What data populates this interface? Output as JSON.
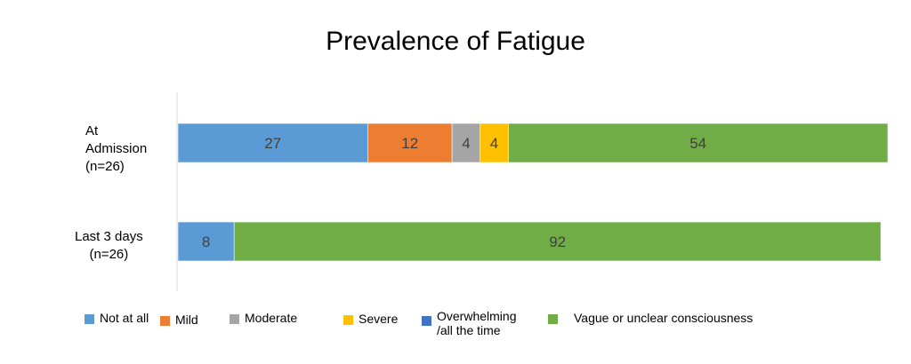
{
  "chart_data": {
    "type": "bar",
    "orientation": "horizontal",
    "stacked": true,
    "title": "Prevalence of Fatigue",
    "categories": [
      "At\nAdmission\n(n=26)",
      "Last 3 days\n(n=26)"
    ],
    "series": [
      {
        "name": "Not at all",
        "color": "#5B9BD5",
        "values": [
          27,
          8
        ]
      },
      {
        "name": "Mild",
        "color": "#ED7D31",
        "values": [
          12,
          0
        ]
      },
      {
        "name": "Moderate",
        "color": "#A5A5A5",
        "values": [
          4,
          0
        ]
      },
      {
        "name": "Severe",
        "color": "#FFC000",
        "values": [
          4,
          0
        ]
      },
      {
        "name": "Overwhelming\n/all the time",
        "color": "#4472C4",
        "values": [
          0,
          0
        ]
      },
      {
        "name": "Vague or unclear consciousness",
        "color": "#70AD47",
        "values": [
          54,
          92
        ]
      }
    ],
    "xlim": [
      0,
      101
    ],
    "grid": false,
    "legend": "bottom"
  }
}
